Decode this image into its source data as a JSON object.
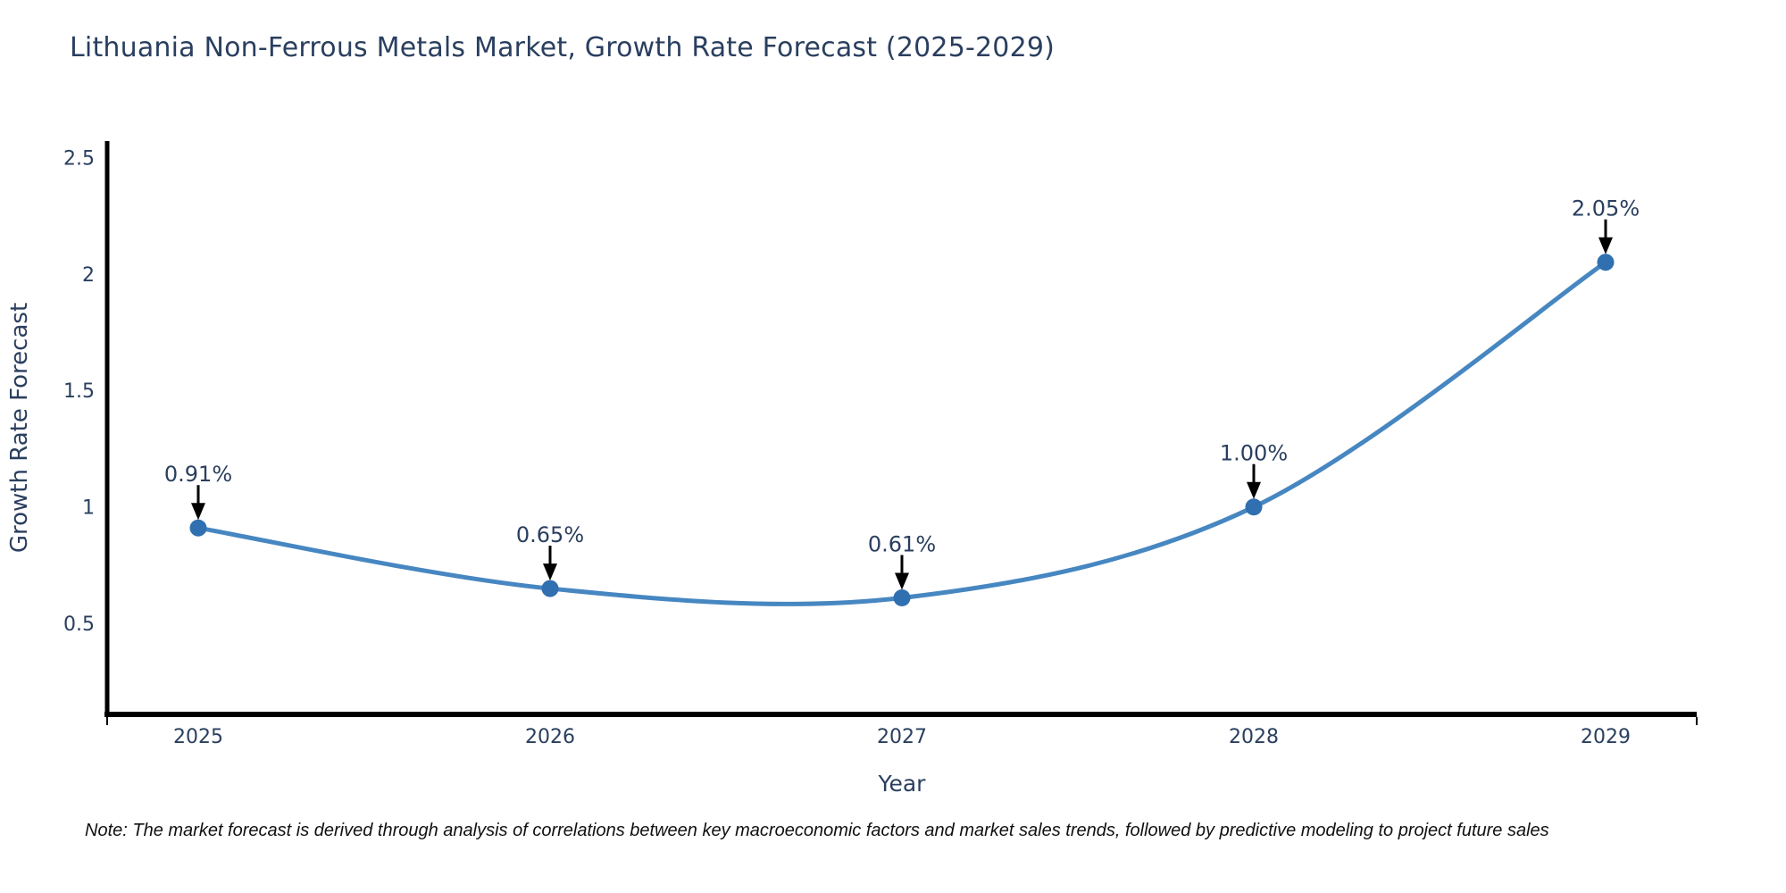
{
  "title": "Lithuania Non-Ferrous Metals Market, Growth Rate Forecast (2025-2029)",
  "note": "Note: The market forecast is derived through analysis of correlations between key macroeconomic factors and market sales trends, followed by predictive modeling to project future sales",
  "colors": {
    "title_text": "#2a3f5f",
    "axis_text": "#2a3f5f",
    "axis_line": "#000000",
    "series_line": "#4787c1",
    "marker_fill": "#3070b0",
    "annotation_arrow": "#000000",
    "note_text": "#111111"
  },
  "chart_data": {
    "type": "line",
    "title": "Lithuania Non-Ferrous Metals Market, Growth Rate Forecast (2025-2029)",
    "xlabel": "Year",
    "ylabel": "Growth Rate Forecast",
    "categories": [
      "2025",
      "2026",
      "2027",
      "2028",
      "2029"
    ],
    "series": [
      {
        "name": "Growth Rate Forecast",
        "values": [
          0.91,
          0.65,
          0.61,
          1.0,
          2.05
        ],
        "point_labels": [
          "0.91%",
          "0.65%",
          "0.61%",
          "1.00%",
          "2.05%"
        ]
      }
    ],
    "yticks": [
      0.5,
      1,
      1.5,
      2,
      2.5
    ],
    "ytick_labels": [
      "0.5",
      "1",
      "1.5",
      "2",
      "2.5"
    ],
    "ylim": [
      0.11,
      2.57
    ],
    "grid": false,
    "legend_position": "none",
    "line_shape": "spline",
    "annotations": "each point labeled with percent value and downward black arrow"
  }
}
